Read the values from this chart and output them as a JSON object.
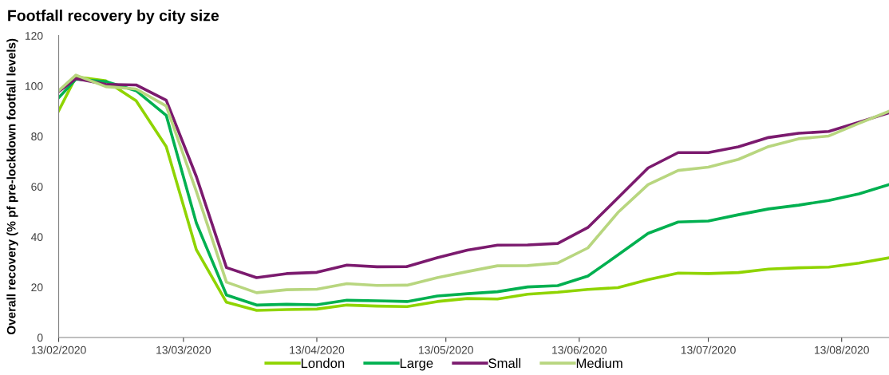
{
  "chart_data": {
    "type": "line",
    "title": "Footfall recovery by city size",
    "ylabel": "Overall recovery (% pf pre-lockdown footfall levels)",
    "x": [
      "2020-02-13",
      "2020-02-17",
      "2020-02-24",
      "2020-03-02",
      "2020-03-09",
      "2020-03-16",
      "2020-03-23",
      "2020-03-30",
      "2020-04-06",
      "2020-04-13",
      "2020-04-20",
      "2020-04-27",
      "2020-05-04",
      "2020-05-11",
      "2020-05-18",
      "2020-05-25",
      "2020-06-01",
      "2020-06-08",
      "2020-06-15",
      "2020-06-22",
      "2020-06-29",
      "2020-07-06",
      "2020-07-13",
      "2020-07-20",
      "2020-07-27",
      "2020-08-03",
      "2020-08-10",
      "2020-08-17",
      "2020-08-24"
    ],
    "series": [
      {
        "name": "London",
        "color": "#8fd400",
        "values": [
          90.1,
          103.6,
          102,
          94.1,
          75.9,
          34.9,
          14.0,
          10.8,
          11.1,
          11.3,
          12.9,
          12.5,
          12.3,
          14.3,
          15.5,
          15.3,
          17.2,
          18.0,
          19.1,
          19.8,
          23.0,
          25.6,
          25.4,
          25.8,
          27.2,
          27.7,
          28.0,
          29.6,
          31.7
        ]
      },
      {
        "name": "Large",
        "color": "#00b050",
        "values": [
          95.3,
          102.7,
          101.7,
          98.1,
          88.3,
          45.5,
          16.9,
          12.9,
          13.2,
          13.0,
          14.8,
          14.6,
          14.3,
          16.5,
          17.4,
          18.2,
          20.1,
          20.6,
          24.4,
          32.8,
          41.4,
          45.9,
          46.3,
          48.8,
          51.1,
          52.6,
          54.5,
          57.1,
          60.8
        ]
      },
      {
        "name": "Small",
        "color": "#7b1a6e",
        "values": [
          97.8,
          102.9,
          100.6,
          100.4,
          94.3,
          64.0,
          27.8,
          23.8,
          25.4,
          25.9,
          28.8,
          28.1,
          28.2,
          31.7,
          34.7,
          36.7,
          36.8,
          37.4,
          43.7,
          55.5,
          67.4,
          73.5,
          73.5,
          75.8,
          79.5,
          81.2,
          81.9,
          85.6,
          89.3
        ]
      },
      {
        "name": "Medium",
        "color": "#b8d67f",
        "values": [
          98.1,
          104.3,
          99.7,
          98.8,
          92.0,
          58.1,
          22.0,
          17.8,
          19.0,
          19.2,
          21.4,
          20.7,
          20.8,
          23.8,
          26.2,
          28.5,
          28.6,
          29.6,
          35.6,
          49.7,
          60.8,
          66.4,
          67.7,
          70.8,
          75.9,
          79.0,
          80.1,
          85.1,
          89.9
        ]
      }
    ],
    "xlim": [
      "2020-02-13",
      "2020-08-24"
    ],
    "xticks": [
      {
        "value": "2020-02-13",
        "label": "13/02/2020"
      },
      {
        "value": "2020-03-13",
        "label": "13/03/2020"
      },
      {
        "value": "2020-04-13",
        "label": "13/04/2020"
      },
      {
        "value": "2020-05-13",
        "label": "13/05/2020"
      },
      {
        "value": "2020-06-13",
        "label": "13/06/2020"
      },
      {
        "value": "2020-07-13",
        "label": "13/07/2020"
      },
      {
        "value": "2020-08-13",
        "label": "13/08/2020"
      }
    ],
    "ylim": [
      0,
      120
    ],
    "yticks": [
      0,
      20,
      40,
      60,
      80,
      100,
      120
    ],
    "grid": false,
    "legend": "bottom",
    "marker": "none",
    "line_style": "solid"
  }
}
